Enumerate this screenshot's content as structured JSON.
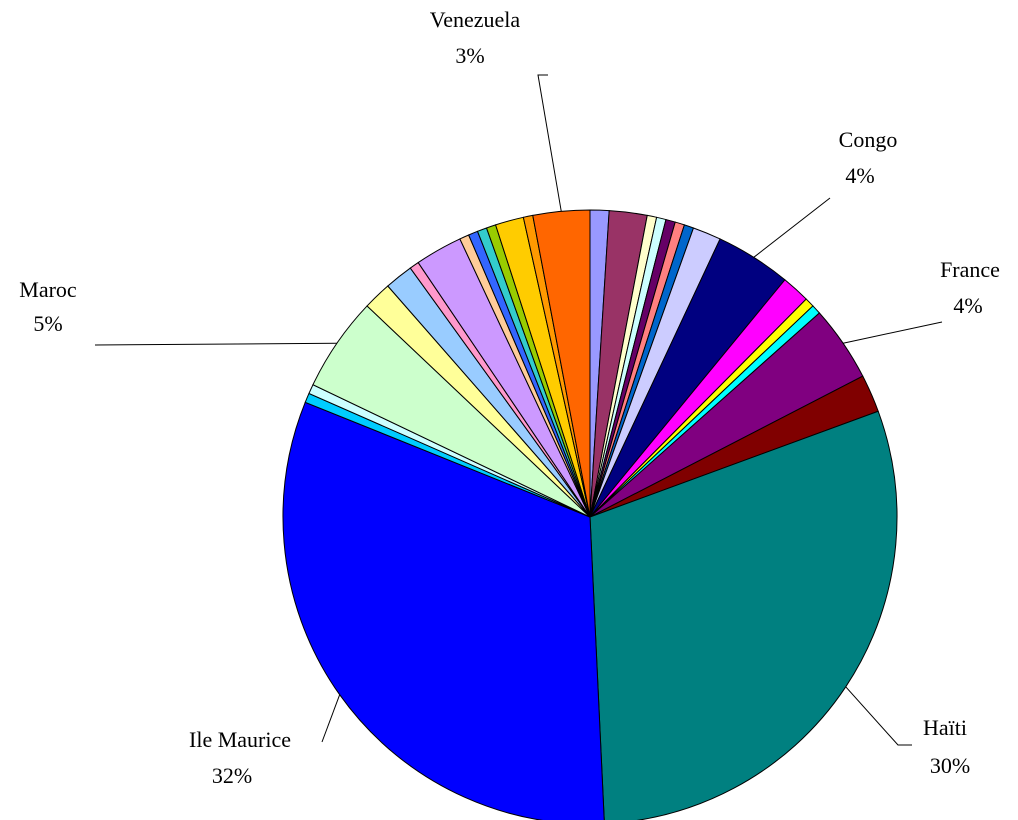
{
  "chart_data": {
    "type": "pie",
    "categories": [
      null,
      null,
      null,
      null,
      null,
      null,
      null,
      null,
      "Congo",
      null,
      null,
      null,
      "France",
      null,
      "Haïti",
      "Ile Maurice",
      null,
      null,
      "Maroc",
      null,
      null,
      null,
      null,
      null,
      null,
      null,
      null,
      null,
      null,
      "Venezuela"
    ],
    "values": [
      1,
      2,
      0.5,
      0.5,
      0.5,
      0.5,
      0.5,
      1.5,
      4,
      1.5,
      0.5,
      0.5,
      4,
      2,
      30,
      32,
      0.5,
      0.5,
      5,
      1.5,
      1.5,
      0.5,
      2.5,
      0.5,
      0.5,
      0.5,
      0.5,
      1.5,
      0.5,
      3
    ],
    "value_labels": [
      null,
      null,
      null,
      null,
      null,
      null,
      null,
      null,
      "4%",
      null,
      null,
      null,
      "4%",
      null,
      "30%",
      "32%",
      null,
      null,
      "5%",
      null,
      null,
      null,
      null,
      null,
      null,
      null,
      null,
      null,
      null,
      "3%"
    ],
    "colors": [
      "#9999ff",
      "#993366",
      "#ffffcc",
      "#ccffff",
      "#660066",
      "#ff8080",
      "#0066cc",
      "#ccccff",
      "#000080",
      "#ff00ff",
      "#ffff00",
      "#00ffff",
      "#800080",
      "#800000",
      "#008080",
      "#0000ff",
      "#00ccff",
      "#ccffff",
      "#ccffcc",
      "#ffff99",
      "#99ccff",
      "#ff99cc",
      "#cc99ff",
      "#ffcc99",
      "#3366ff",
      "#33cccc",
      "#99cc00",
      "#ffcc00",
      "#ff9900",
      "#ff6600"
    ]
  }
}
